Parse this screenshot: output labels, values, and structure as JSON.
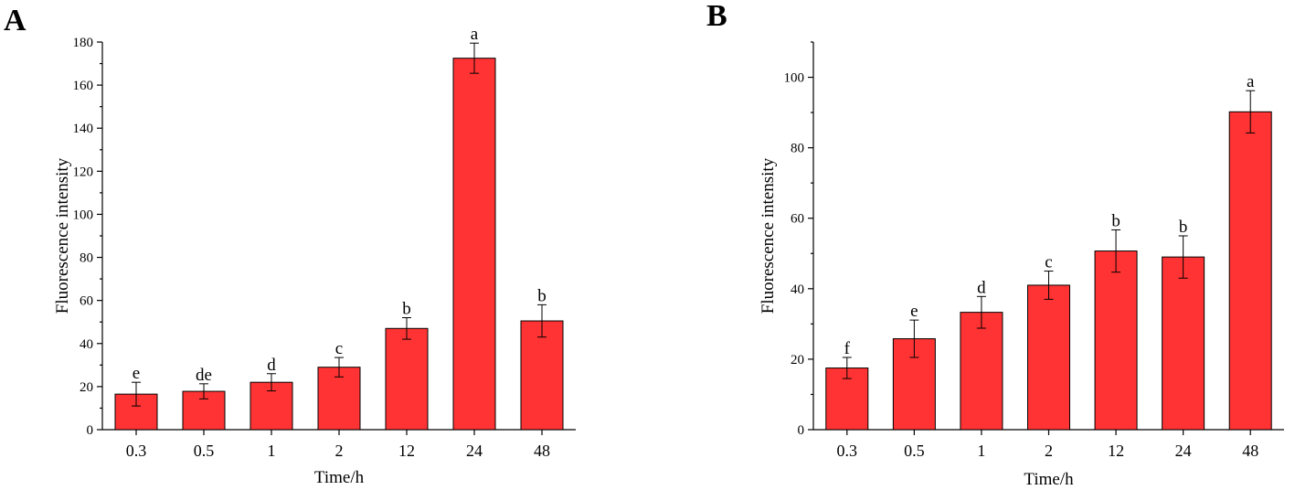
{
  "chart_data": [
    {
      "panel": "A",
      "type": "bar",
      "categories": [
        "0.3",
        "0.5",
        "1",
        "2",
        "12",
        "24",
        "48"
      ],
      "values": [
        16.5,
        17.8,
        22.0,
        29.0,
        47.0,
        172.5,
        50.5
      ],
      "errors": [
        5.5,
        3.5,
        4.0,
        4.5,
        5.0,
        7.0,
        7.5
      ],
      "letters": [
        "e",
        "de",
        "d",
        "c",
        "b",
        "a",
        "b"
      ],
      "xlabel": "Time/h",
      "ylabel": "Fluorescence intensity",
      "ylim": [
        0,
        180
      ],
      "yticks": [
        0,
        20,
        40,
        60,
        80,
        100,
        120,
        140,
        160,
        180
      ],
      "bar_color": "#ff3333"
    },
    {
      "panel": "B",
      "type": "bar",
      "categories": [
        "0.3",
        "0.5",
        "1",
        "2",
        "12",
        "24",
        "48"
      ],
      "values": [
        17.5,
        25.8,
        33.3,
        41.0,
        50.7,
        49.0,
        90.2
      ],
      "errors": [
        3.0,
        5.3,
        4.5,
        4.0,
        6.0,
        6.0,
        6.0
      ],
      "letters": [
        "f",
        "e",
        "d",
        "c",
        "b",
        "b",
        "a"
      ],
      "xlabel": "Time/h",
      "ylabel": "Fluorescence intensity",
      "ylim": [
        0,
        110
      ],
      "yticks": [
        0,
        20,
        40,
        60,
        80,
        100
      ],
      "bar_color": "#ff3333"
    }
  ]
}
